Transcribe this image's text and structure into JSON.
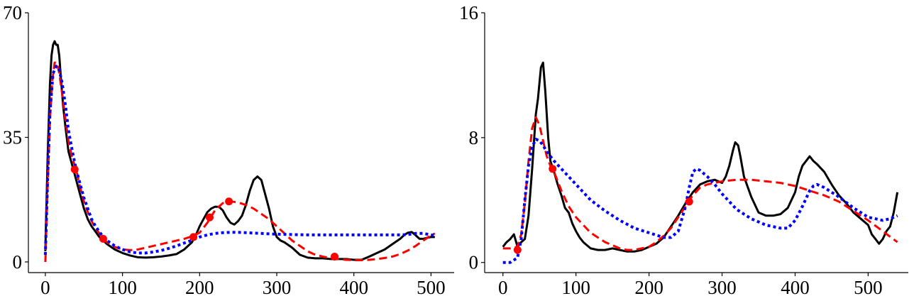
{
  "chart_data": [
    {
      "type": "line",
      "title": "",
      "xlabel": "",
      "ylabel": "",
      "xlim": [
        -22,
        530
      ],
      "ylim": [
        -3,
        70
      ],
      "x_ticks": [
        0,
        100,
        200,
        300,
        400,
        500
      ],
      "x_tick_labels": [
        "0",
        "100",
        "200",
        "300",
        "400",
        "500"
      ],
      "y_ticks": [
        0,
        35,
        70
      ],
      "y_tick_labels": [
        "0",
        "35",
        "70"
      ],
      "grid": false,
      "legend": null,
      "series": [
        {
          "style": "solid",
          "color": "#000000",
          "x": [
            0,
            3,
            6,
            8,
            10,
            12,
            14,
            16,
            18,
            20,
            23,
            26,
            30,
            35,
            40,
            45,
            50,
            55,
            60,
            65,
            70,
            75,
            80,
            90,
            100,
            110,
            120,
            130,
            140,
            150,
            160,
            170,
            180,
            190,
            195,
            200,
            205,
            210,
            215,
            220,
            225,
            230,
            235,
            240,
            245,
            250,
            255,
            260,
            265,
            270,
            275,
            280,
            285,
            290,
            295,
            300,
            305,
            310,
            320,
            330,
            340,
            350,
            360,
            370,
            380,
            390,
            400,
            410,
            420,
            430,
            440,
            450,
            460,
            465,
            470,
            475,
            480,
            485,
            490,
            495,
            500,
            505
          ],
          "y": [
            3,
            30,
            50,
            58,
            61,
            62,
            61,
            61,
            58,
            52,
            44,
            38,
            31,
            27,
            23,
            19,
            15,
            12,
            10,
            8.5,
            7,
            6,
            5,
            3.5,
            2.5,
            1.8,
            1.3,
            1.2,
            1.3,
            1.5,
            1.8,
            2.2,
            3.5,
            5.5,
            7.5,
            10,
            12,
            14,
            15,
            15.5,
            15.5,
            14.5,
            12.5,
            11,
            10.5,
            11.5,
            13,
            16,
            20,
            23,
            24,
            23,
            19,
            15,
            10,
            7,
            6,
            5.5,
            4,
            2,
            1.2,
            1,
            1,
            0.8,
            0.8,
            0.8,
            0.6,
            0.6,
            1.5,
            2.5,
            3.5,
            5,
            6.5,
            7.5,
            8.2,
            8.4,
            7.5,
            6.5,
            6.5,
            6.8,
            7,
            7
          ]
        },
        {
          "style": "dashed",
          "color": "#ff0000",
          "x": [
            0,
            3,
            6,
            9,
            12,
            15,
            18,
            22,
            26,
            30,
            35,
            40,
            45,
            50,
            55,
            60,
            65,
            70,
            75,
            80,
            90,
            100,
            110,
            120,
            130,
            140,
            150,
            160,
            170,
            180,
            190,
            200,
            210,
            220,
            230,
            240,
            250,
            260,
            270,
            280,
            290,
            300,
            310,
            320,
            330,
            340,
            350,
            360,
            370,
            380,
            390,
            400,
            410,
            420,
            430,
            440,
            450,
            460,
            470,
            480,
            490,
            500,
            505
          ],
          "y": [
            0,
            22,
            40,
            51,
            56,
            56,
            53,
            47,
            40,
            34,
            29,
            26,
            21,
            17,
            14,
            11.5,
            9.5,
            8,
            6.5,
            5.5,
            4.2,
            3.5,
            3.3,
            3.5,
            4,
            4.5,
            5,
            5.5,
            6,
            6.5,
            7.2,
            8.2,
            11,
            14.5,
            16.5,
            17,
            16.7,
            16,
            15,
            13.5,
            12,
            10,
            8,
            6,
            4.5,
            3,
            2,
            1.5,
            1,
            0.8,
            0.6,
            0.5,
            0.5,
            0.6,
            0.8,
            1.1,
            1.5,
            2.2,
            3.2,
            4.5,
            6,
            7.5,
            8
          ]
        },
        {
          "style": "dotted",
          "color": "#0000ff",
          "x": [
            0,
            3,
            6,
            10,
            14,
            18,
            22,
            26,
            30,
            35,
            40,
            45,
            50,
            55,
            60,
            65,
            70,
            75,
            80,
            90,
            100,
            110,
            120,
            130,
            140,
            150,
            160,
            170,
            180,
            190,
            200,
            210,
            220,
            230,
            240,
            250,
            260,
            270,
            280,
            290,
            300,
            320,
            340,
            360,
            380,
            400,
            420,
            440,
            460,
            470,
            480,
            490,
            500,
            505
          ],
          "y": [
            2,
            24,
            42,
            53,
            55,
            54,
            50,
            44,
            37,
            31,
            26,
            22,
            18,
            15,
            12,
            10,
            8.5,
            7,
            6,
            4.5,
            3.5,
            2.8,
            2.5,
            2.5,
            2.8,
            3.2,
            3.8,
            4.5,
            5.3,
            6.1,
            7,
            7.6,
            8,
            8.2,
            8.3,
            8.3,
            8.2,
            8.1,
            8,
            7.9,
            7.8,
            7.7,
            7.6,
            7.6,
            7.6,
            7.6,
            7.6,
            7.6,
            7.6,
            7.7,
            8,
            8,
            7.6,
            7.5
          ]
        },
        {
          "style": "markers",
          "color": "#ff0000",
          "x": [
            38,
            75,
            192,
            213,
            238,
            375
          ],
          "y": [
            26,
            6.5,
            7,
            12.5,
            17,
            1.5
          ]
        }
      ]
    },
    {
      "type": "line",
      "title": "",
      "xlabel": "",
      "ylabel": "",
      "xlim": [
        -25,
        555
      ],
      "ylim": [
        -0.65,
        16
      ],
      "x_ticks": [
        0,
        100,
        200,
        300,
        400,
        500
      ],
      "x_tick_labels": [
        "0",
        "100",
        "200",
        "300",
        "400",
        "500"
      ],
      "y_ticks": [
        0,
        8,
        16
      ],
      "y_tick_labels": [
        "0",
        "8",
        "16"
      ],
      "grid": false,
      "legend": null,
      "series": [
        {
          "style": "solid",
          "color": "#000000",
          "x": [
            0,
            5,
            10,
            15,
            20,
            25,
            30,
            35,
            40,
            45,
            48,
            52,
            55,
            58,
            62,
            65,
            70,
            75,
            80,
            85,
            90,
            95,
            100,
            105,
            110,
            115,
            120,
            130,
            140,
            150,
            160,
            170,
            180,
            190,
            200,
            210,
            220,
            230,
            240,
            250,
            260,
            270,
            280,
            290,
            300,
            305,
            310,
            315,
            318,
            322,
            325,
            330,
            340,
            350,
            360,
            370,
            380,
            390,
            400,
            405,
            410,
            415,
            420,
            425,
            430,
            440,
            450,
            460,
            470,
            480,
            490,
            500,
            505,
            510,
            515,
            520,
            525,
            530,
            535,
            540
          ],
          "y": [
            1,
            1.3,
            1.5,
            1.8,
            1,
            1.3,
            1.5,
            3,
            6,
            9.5,
            10.5,
            12.5,
            12.8,
            11,
            8,
            6.5,
            5.8,
            5,
            4.3,
            3.5,
            3.2,
            2.5,
            2,
            1.6,
            1.3,
            1.1,
            0.9,
            0.8,
            0.8,
            0.9,
            0.8,
            0.7,
            0.7,
            0.8,
            1,
            1.2,
            1.6,
            2.3,
            3,
            3.8,
            4.5,
            5,
            5.2,
            5.3,
            5.1,
            5.5,
            6.2,
            7.2,
            7.7,
            7.5,
            6.8,
            5.5,
            4.2,
            3.2,
            3,
            3,
            3.1,
            3.5,
            4.5,
            5.5,
            6.2,
            6.5,
            6.8,
            6.5,
            6.3,
            5.8,
            5,
            4.3,
            3.8,
            3.2,
            2.8,
            2.4,
            1.8,
            1.5,
            1.2,
            1.5,
            2,
            2.3,
            3.2,
            4.5
          ]
        },
        {
          "style": "dashed",
          "color": "#ff0000",
          "x": [
            0,
            10,
            20,
            25,
            30,
            35,
            40,
            45,
            50,
            55,
            60,
            65,
            70,
            80,
            90,
            100,
            110,
            120,
            130,
            140,
            150,
            160,
            170,
            180,
            190,
            200,
            210,
            220,
            230,
            240,
            250,
            255,
            260,
            270,
            280,
            290,
            300,
            320,
            340,
            360,
            380,
            400,
            420,
            440,
            460,
            480,
            500,
            520,
            540
          ],
          "y": [
            0.9,
            0.9,
            1,
            1.8,
            3.8,
            6.5,
            8.6,
            9.3,
            8.8,
            7.8,
            6.8,
            6.2,
            5.8,
            4.6,
            3.6,
            2.9,
            2.4,
            1.9,
            1.6,
            1.3,
            1.1,
            0.9,
            0.8,
            0.8,
            0.9,
            1,
            1.3,
            1.7,
            2.2,
            2.9,
            3.6,
            4,
            4.3,
            4.8,
            5,
            5.1,
            5.2,
            5.3,
            5.3,
            5.2,
            5.1,
            4.9,
            4.6,
            4.3,
            3.9,
            3.3,
            2.7,
            2,
            1.3
          ]
        },
        {
          "style": "dotted",
          "color": "#0000ff",
          "x": [
            0,
            10,
            20,
            25,
            30,
            35,
            40,
            45,
            50,
            55,
            60,
            65,
            70,
            80,
            90,
            100,
            110,
            120,
            140,
            160,
            180,
            200,
            220,
            230,
            240,
            250,
            255,
            260,
            265,
            270,
            280,
            290,
            300,
            310,
            320,
            340,
            360,
            380,
            390,
            400,
            410,
            420,
            425,
            430,
            440,
            460,
            480,
            500,
            510,
            520,
            530,
            540
          ],
          "y": [
            0,
            0,
            0.3,
            1.5,
            4,
            6.2,
            7.4,
            7.9,
            7.8,
            7.5,
            7.1,
            6.8,
            6.5,
            6,
            5.5,
            5,
            4.5,
            4,
            3.3,
            2.7,
            2.2,
            1.9,
            1.6,
            1.6,
            2,
            3.6,
            4.8,
            5.8,
            6,
            5.9,
            5.5,
            5,
            4.4,
            3.9,
            3.4,
            2.8,
            2.4,
            2.2,
            2.2,
            2.7,
            3.6,
            4.6,
            4.9,
            5,
            4.8,
            4.2,
            3.5,
            2.9,
            2.8,
            2.7,
            2.8,
            3
          ]
        },
        {
          "style": "markers",
          "color": "#ff0000",
          "x": [
            20,
            68,
            255
          ],
          "y": [
            0.8,
            6,
            3.9
          ]
        }
      ]
    }
  ]
}
